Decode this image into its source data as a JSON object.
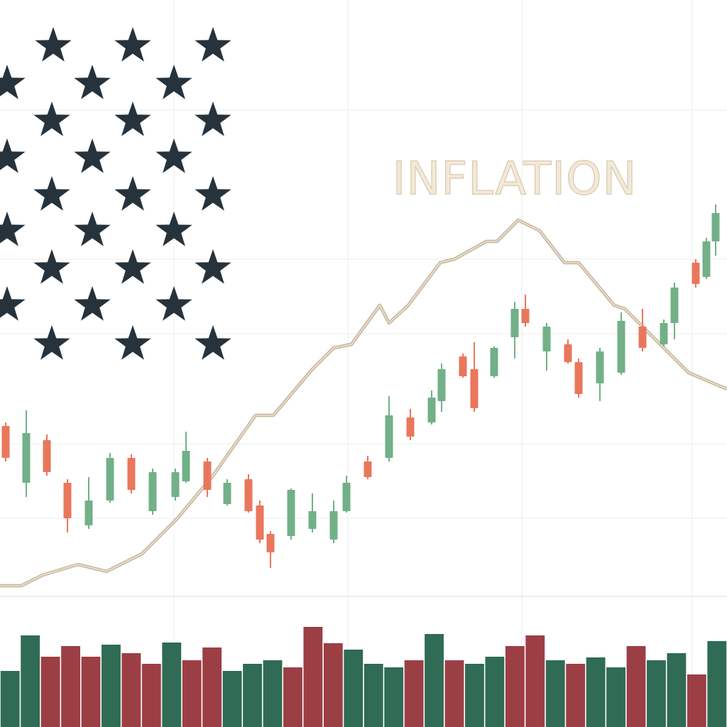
{
  "chart_data": [
    {
      "type": "candlestick",
      "title": "INFLATION",
      "x": [
        8,
        37,
        66,
        95,
        125,
        155,
        185,
        215,
        247,
        262,
        292,
        320,
        350,
        366,
        381,
        410,
        440,
        470,
        488,
        518,
        548,
        578,
        608,
        622,
        652,
        668,
        696,
        725,
        740,
        770,
        800,
        815,
        845,
        875,
        905,
        935,
        950,
        980,
        995,
        1008
      ],
      "open": [
        24,
        16,
        22,
        16,
        10,
        13.5,
        19.5,
        12,
        14,
        16.2,
        19,
        13,
        16.5,
        12.8,
        8.8,
        8.5,
        9.5,
        8,
        12,
        19,
        19.5,
        25.2,
        24.5,
        27.5,
        33.8,
        32,
        31,
        36.5,
        40.5,
        34.5,
        35.5,
        33,
        30,
        31.5,
        38,
        35.5,
        38.5,
        47,
        45,
        50
      ],
      "high": [
        24.5,
        26.2,
        22.8,
        16.5,
        16.8,
        20.2,
        20,
        18,
        18,
        23.2,
        19.5,
        16.5,
        17.2,
        13.5,
        9.2,
        15.2,
        14.5,
        13.5,
        17,
        19.8,
        28.2,
        26.4,
        29,
        32.8,
        34.2,
        35.8,
        35.2,
        41.5,
        42.5,
        38.5,
        36.2,
        33.5,
        35,
        40,
        40.5,
        39,
        44.2,
        47.5,
        50.5,
        55.2
      ],
      "low": [
        19,
        14,
        17,
        9,
        9.5,
        13.2,
        14.5,
        11.5,
        13.5,
        16,
        14,
        12.8,
        11.8,
        7.5,
        4,
        8,
        9,
        7.5,
        11.8,
        16.5,
        19,
        22,
        24.2,
        26,
        30.8,
        26,
        30.8,
        33.5,
        38,
        31.8,
        32.8,
        28,
        27.5,
        31.2,
        34.5,
        35.2,
        36.2,
        43.5,
        44.7,
        48
      ],
      "close": [
        19.5,
        23,
        17.5,
        11,
        13.5,
        19.5,
        15,
        17.5,
        17.5,
        20.5,
        15,
        16,
        12,
        8,
        6.2,
        15,
        12,
        12,
        16,
        16.8,
        25.5,
        22.5,
        28,
        32,
        31,
        26.5,
        35,
        40.5,
        38.5,
        38,
        33,
        28.5,
        34.5,
        38.8,
        35,
        38.5,
        43.5,
        44,
        50,
        54
      ],
      "up_color": "#72b088",
      "down_color": "#e9775c",
      "xlim": [
        0,
        1024
      ],
      "ylim": [
        0,
        84
      ],
      "line": {
        "color": "#e6d9c4",
        "x": [
          0,
          30,
          60,
          110,
          150,
          200,
          250,
          300,
          360,
          385,
          440,
          470,
          495,
          535,
          548,
          575,
          620,
          640,
          685,
          700,
          730,
          760,
          795,
          815,
          865,
          880,
          930,
          970,
          1024
        ],
        "values": [
          1.5,
          1.5,
          3,
          4.5,
          3.5,
          6,
          11,
          17,
          25.5,
          25.5,
          32,
          35,
          35.5,
          41,
          38.5,
          41,
          47,
          47.5,
          50,
          50,
          53,
          51.5,
          47,
          47,
          41,
          40.5,
          35.5,
          31.5,
          29.2
        ]
      }
    },
    {
      "type": "bar",
      "values": [
        79,
        129,
        99,
        114,
        99,
        116,
        104,
        89,
        119,
        94,
        112,
        79,
        89,
        94,
        84,
        141,
        118,
        109,
        89,
        84,
        94,
        131,
        94,
        89,
        99,
        114,
        129,
        94,
        89,
        98,
        84,
        114,
        94,
        104,
        74,
        121
      ],
      "colors": [
        "#2f6b55",
        "#2f6b55",
        "#9c3f45",
        "#9c3f45",
        "#9c3f45",
        "#2f6b55",
        "#9c3f45",
        "#9c3f45",
        "#2f6b55",
        "#9c3f45",
        "#9c3f45",
        "#2f6b55",
        "#2f6b55",
        "#2f6b55",
        "#9c3f45",
        "#9c3f45",
        "#9c3f45",
        "#2f6b55",
        "#2f6b55",
        "#2f6b55",
        "#9c3f45",
        "#2f6b55",
        "#9c3f45",
        "#2f6b55",
        "#2f6b55",
        "#9c3f45",
        "#9c3f45",
        "#2f6b55",
        "#9c3f45",
        "#2f6b55",
        "#2f6b55",
        "#9c3f45",
        "#2f6b55",
        "#2f6b55",
        "#9c3f45",
        "#2f6b55"
      ],
      "ylim": [
        0,
        150
      ]
    }
  ]
}
